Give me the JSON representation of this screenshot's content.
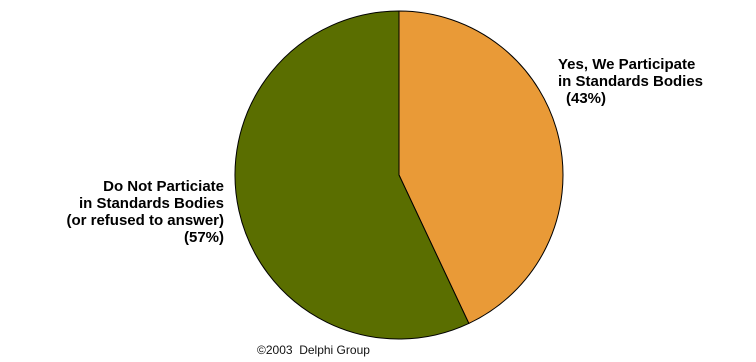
{
  "chart_data": {
    "type": "pie",
    "slices": [
      {
        "label_lines": [
          "Yes, We Participate",
          "in Standards Bodies"
        ],
        "percent_label": "(43%)",
        "value": 43,
        "color": "#e99a37"
      },
      {
        "label_lines": [
          "Do Not Particiate",
          "in Standards Bodies",
          "(or refused to answer)"
        ],
        "percent_label": "(57%)",
        "value": 57,
        "color": "#5a6e00"
      }
    ],
    "start_angle": "12 o'clock",
    "direction": "clockwise",
    "outline_color": "#000000"
  },
  "footer": {
    "copyright": "©2003  Delphi Group"
  }
}
